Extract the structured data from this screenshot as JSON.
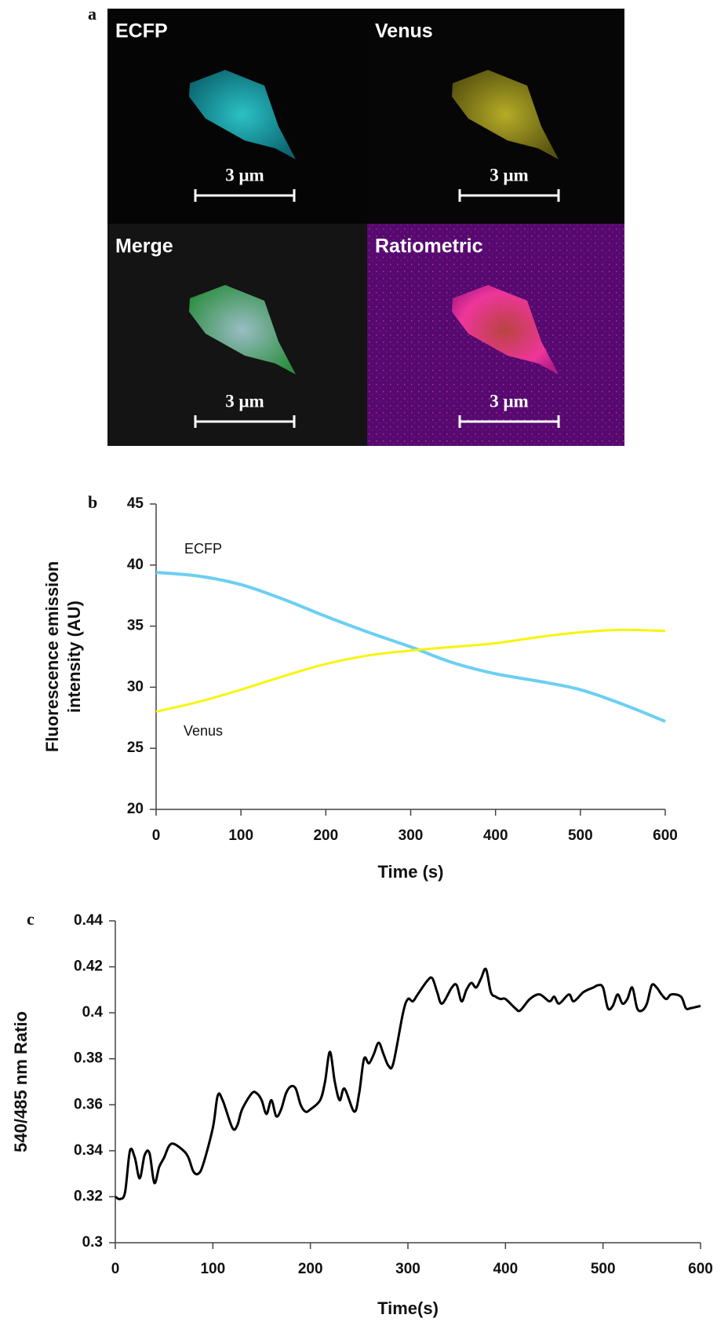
{
  "micrographs": {
    "panel": "a",
    "images": [
      {
        "label": "ECFP",
        "scale_bar": "3 μm"
      },
      {
        "label": "Venus",
        "scale_bar": "3 μm"
      },
      {
        "label": "Merge",
        "scale_bar": "3 μm"
      },
      {
        "label": "Ratiometric",
        "scale_bar": "3 μm"
      }
    ]
  },
  "chart_data": [
    {
      "type": "line",
      "panel": "b",
      "ylabel": [
        "Fluorescence emission",
        "intensity (AU)"
      ],
      "xlabel": "Time (s)",
      "x": [
        0,
        50,
        100,
        150,
        200,
        250,
        300,
        350,
        400,
        450,
        500,
        550,
        600
      ],
      "series": [
        {
          "name": "ECFP",
          "color": "#6ccff2",
          "values": [
            39.4,
            39.1,
            38.4,
            37.2,
            35.8,
            34.5,
            33.3,
            32.0,
            31.1,
            30.5,
            29.8,
            28.6,
            27.2
          ]
        },
        {
          "name": "Venus",
          "color": "#f7f50a",
          "values": [
            28.0,
            28.8,
            29.8,
            30.9,
            31.9,
            32.6,
            33.0,
            33.3,
            33.6,
            34.1,
            34.5,
            34.7,
            34.6
          ]
        }
      ],
      "xlim": [
        0,
        600
      ],
      "xticks": [
        0,
        100,
        200,
        300,
        400,
        500,
        600
      ],
      "ylim": [
        20,
        45
      ],
      "yticks": [
        20,
        25,
        30,
        35,
        40,
        45
      ]
    },
    {
      "type": "line",
      "panel": "c",
      "ylabel": [
        "540/485 nm Ratio"
      ],
      "xlabel": "Time(s)",
      "x": [
        0,
        5,
        10,
        15,
        20,
        25,
        30,
        35,
        40,
        45,
        50,
        55,
        60,
        70,
        75,
        80,
        85,
        90,
        100,
        105,
        110,
        120,
        125,
        130,
        140,
        145,
        150,
        155,
        160,
        165,
        170,
        175,
        180,
        185,
        190,
        195,
        200,
        210,
        215,
        220,
        225,
        230,
        235,
        245,
        250,
        255,
        260,
        265,
        270,
        275,
        280,
        285,
        295,
        300,
        305,
        310,
        320,
        325,
        330,
        335,
        345,
        350,
        355,
        360,
        365,
        370,
        375,
        380,
        385,
        390,
        395,
        400,
        410,
        415,
        425,
        435,
        445,
        450,
        455,
        465,
        470,
        480,
        490,
        495,
        500,
        505,
        510,
        515,
        520,
        525,
        530,
        535,
        540,
        545,
        550,
        555,
        560,
        565,
        570,
        580,
        585,
        590,
        600
      ],
      "series": [
        {
          "color": "#000000",
          "values": [
            0.32,
            0.319,
            0.322,
            0.34,
            0.337,
            0.328,
            0.338,
            0.339,
            0.326,
            0.333,
            0.337,
            0.342,
            0.343,
            0.34,
            0.337,
            0.331,
            0.33,
            0.334,
            0.35,
            0.364,
            0.362,
            0.35,
            0.351,
            0.358,
            0.365,
            0.365,
            0.362,
            0.356,
            0.362,
            0.355,
            0.358,
            0.365,
            0.368,
            0.367,
            0.36,
            0.357,
            0.358,
            0.362,
            0.37,
            0.383,
            0.37,
            0.362,
            0.367,
            0.357,
            0.365,
            0.38,
            0.378,
            0.382,
            0.387,
            0.382,
            0.377,
            0.378,
            0.4,
            0.406,
            0.405,
            0.408,
            0.414,
            0.415,
            0.409,
            0.404,
            0.411,
            0.412,
            0.405,
            0.41,
            0.413,
            0.411,
            0.415,
            0.419,
            0.409,
            0.407,
            0.406,
            0.406,
            0.402,
            0.401,
            0.406,
            0.408,
            0.405,
            0.407,
            0.404,
            0.408,
            0.405,
            0.409,
            0.411,
            0.412,
            0.411,
            0.402,
            0.403,
            0.408,
            0.404,
            0.406,
            0.411,
            0.402,
            0.401,
            0.404,
            0.412,
            0.411,
            0.408,
            0.406,
            0.408,
            0.407,
            0.402,
            0.402,
            0.403
          ]
        }
      ],
      "xlim": [
        0,
        600
      ],
      "xticks": [
        0,
        100,
        200,
        300,
        400,
        500,
        600
      ],
      "ylim": [
        0.3,
        0.44
      ],
      "yticks": [
        0.3,
        0.32,
        0.34,
        0.36,
        0.38,
        0.4,
        0.42,
        0.44
      ]
    }
  ]
}
